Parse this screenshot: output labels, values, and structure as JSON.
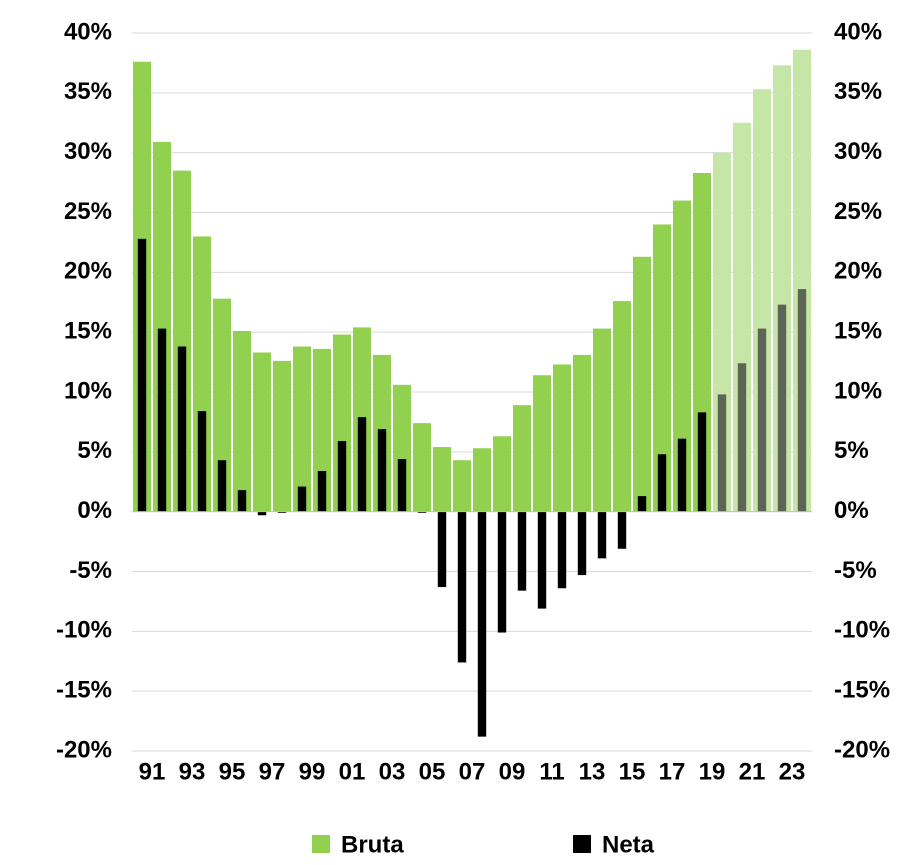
{
  "chart_data": {
    "type": "bar",
    "categories": [
      "91",
      null,
      "93",
      null,
      "95",
      null,
      "97",
      null,
      "99",
      null,
      "01",
      null,
      "03",
      null,
      "05",
      null,
      "07",
      null,
      "09",
      null,
      "11",
      null,
      "13",
      null,
      "15",
      null,
      "17",
      null,
      "19",
      null,
      "21",
      null,
      "23",
      null
    ],
    "series": [
      {
        "name": "Bruta",
        "color": "#92d050",
        "colors": [
          "#92d050",
          "#92d050",
          "#92d050",
          "#92d050",
          "#92d050",
          "#92d050",
          "#92d050",
          "#92d050",
          "#92d050",
          "#92d050",
          "#92d050",
          "#92d050",
          "#92d050",
          "#92d050",
          "#92d050",
          "#92d050",
          "#92d050",
          "#92d050",
          "#92d050",
          "#92d050",
          "#92d050",
          "#92d050",
          "#92d050",
          "#92d050",
          "#92d050",
          "#92d050",
          "#92d050",
          "#92d050",
          "#92d050",
          "#c5e6a6",
          "#c5e6a6",
          "#c5e6a6",
          "#c5e6a6",
          "#c5e6a6"
        ],
        "values": [
          37.6,
          30.9,
          28.5,
          23.0,
          17.8,
          15.1,
          13.3,
          12.6,
          13.8,
          13.6,
          14.8,
          15.4,
          13.1,
          10.6,
          7.4,
          5.4,
          4.3,
          5.3,
          6.3,
          8.9,
          11.4,
          12.3,
          13.1,
          15.3,
          17.6,
          21.3,
          24.0,
          26.0,
          28.3,
          30.0,
          32.5,
          35.3,
          37.3,
          38.6
        ]
      },
      {
        "name": "Neta",
        "color": "#000000",
        "colors": [
          "#000000",
          "#000000",
          "#000000",
          "#000000",
          "#000000",
          "#000000",
          "#000000",
          "#000000",
          "#000000",
          "#000000",
          "#000000",
          "#000000",
          "#000000",
          "#000000",
          "#000000",
          "#000000",
          "#000000",
          "#000000",
          "#000000",
          "#000000",
          "#000000",
          "#000000",
          "#000000",
          "#000000",
          "#000000",
          "#000000",
          "#000000",
          "#000000",
          "#000000",
          "#5e6456",
          "#5e6456",
          "#5e6456",
          "#5e6456",
          "#5e6456"
        ],
        "values": [
          22.8,
          15.3,
          13.8,
          8.4,
          4.3,
          1.8,
          -0.3,
          -0.1,
          2.1,
          3.4,
          5.9,
          7.9,
          6.9,
          4.4,
          -0.1,
          -6.3,
          -12.6,
          -18.8,
          -10.1,
          -6.6,
          -8.1,
          -6.4,
          -5.3,
          -3.9,
          -3.1,
          1.3,
          4.8,
          6.1,
          8.3,
          9.8,
          12.4,
          15.3,
          17.3,
          18.6
        ]
      }
    ],
    "ylim": [
      -20,
      40
    ],
    "yticks": [
      {
        "value": -20,
        "label": "-20%"
      },
      {
        "value": -15,
        "label": "-15%"
      },
      {
        "value": -10,
        "label": "-10%"
      },
      {
        "value": -5,
        "label": "-5%"
      },
      {
        "value": 0,
        "label": "0%"
      },
      {
        "value": 5,
        "label": "5%"
      },
      {
        "value": 10,
        "label": "10%"
      },
      {
        "value": 15,
        "label": "15%"
      },
      {
        "value": 20,
        "label": "20%"
      },
      {
        "value": 25,
        "label": "25%"
      },
      {
        "value": 30,
        "label": "30%"
      },
      {
        "value": 35,
        "label": "35%"
      },
      {
        "value": 40,
        "label": "40%"
      }
    ],
    "y2lim": [
      -20,
      40
    ],
    "y2ticks": [
      {
        "value": -20,
        "label": "-20%"
      },
      {
        "value": -15,
        "label": "-15%"
      },
      {
        "value": -10,
        "label": "-10%"
      },
      {
        "value": -5,
        "label": "-5%"
      },
      {
        "value": 0,
        "label": "0%"
      },
      {
        "value": 5,
        "label": "5%"
      },
      {
        "value": 10,
        "label": "10%"
      },
      {
        "value": 15,
        "label": "15%"
      },
      {
        "value": 20,
        "label": "20%"
      },
      {
        "value": 25,
        "label": "25%"
      },
      {
        "value": 30,
        "label": "30%"
      },
      {
        "value": 35,
        "label": "35%"
      },
      {
        "value": 40,
        "label": "40%"
      }
    ],
    "grid": true,
    "legend": "bottom"
  }
}
